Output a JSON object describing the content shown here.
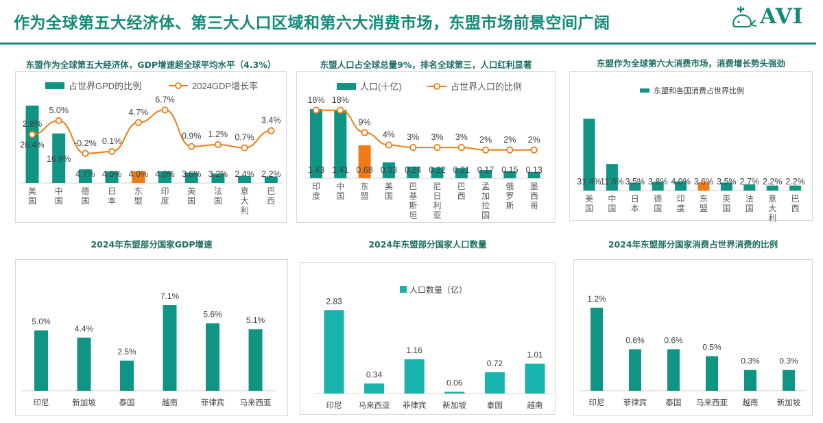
{
  "header": {
    "title": "作为全球第五大经济体、第三大人口区域和第六大消费市场，东盟市场前景空间广阔",
    "logo_text": "AVI"
  },
  "colors": {
    "teal": "#109585",
    "orange": "#f07b14",
    "cyan": "#17b3ad",
    "title": "#158a78"
  },
  "chart_data": [
    {
      "type": "bar",
      "title": "东盟作为全球第五大经济体，GDP增速超全球平均水平（4.3%）",
      "categories": [
        "美国",
        "中国",
        "德国",
        "日本",
        "东盟",
        "印度",
        "英国",
        "法国",
        "意大利",
        "巴西"
      ],
      "highlight_category": "东盟",
      "series": [
        {
          "name": "占世界GPD的比例",
          "kind": "bar",
          "values": [
            26.4,
            16.9,
            4.7,
            4.0,
            4.0,
            4.0,
            3.6,
            3.2,
            2.4,
            2.2
          ],
          "decimals": 1,
          "suffix": "%"
        },
        {
          "name": "2024GDP增长率",
          "kind": "line",
          "values": [
            2.8,
            5.0,
            -0.2,
            0.1,
            4.7,
            6.7,
            0.9,
            1.2,
            0.7,
            3.4
          ],
          "decimals": 1,
          "suffix": "%"
        }
      ],
      "legend": "top"
    },
    {
      "type": "bar",
      "title": "东盟人口占全球总量9%，排名全球第三，人口红利显著",
      "categories": [
        "印度",
        "中国",
        "东盟",
        "美国",
        "巴基斯坦",
        "尼日利亚",
        "巴西",
        "孟加拉国",
        "俄罗斯",
        "墨西哥"
      ],
      "highlight_category": "东盟",
      "series": [
        {
          "name": "人口(十亿)",
          "kind": "bar",
          "values": [
            1.43,
            1.41,
            0.68,
            0.33,
            0.24,
            0.22,
            0.21,
            0.17,
            0.15,
            0.13
          ],
          "decimals": 2,
          "suffix": ""
        },
        {
          "name": "占世界人口的比例",
          "kind": "line",
          "values": [
            18,
            18,
            9,
            4,
            3,
            3,
            3,
            2,
            2,
            2
          ],
          "decimals": 0,
          "suffix": "%"
        }
      ],
      "legend": "top"
    },
    {
      "type": "bar",
      "title": "东盟作为全球第六大消费市场，消费增长势头强劲",
      "categories": [
        "美国",
        "中国",
        "日本",
        "德国",
        "印度",
        "东盟",
        "英国",
        "法国",
        "意大利",
        "巴西"
      ],
      "highlight_category": "东盟",
      "series": [
        {
          "name": "东盟和各国消费占世界比例",
          "kind": "bar",
          "values": [
            31.4,
            11.6,
            3.5,
            3.8,
            4.0,
            3.6,
            3.5,
            2.7,
            2.2,
            2.2
          ],
          "decimals": 1,
          "suffix": "%"
        }
      ],
      "legend": "top"
    },
    {
      "type": "bar",
      "title": "2024年东盟部分国家GDP增速",
      "categories": [
        "印尼",
        "新加坡",
        "泰国",
        "越南",
        "菲律宾",
        "马来西亚"
      ],
      "series": [
        {
          "name": "GDP增速",
          "kind": "bar",
          "values": [
            5.0,
            4.4,
            2.5,
            7.1,
            5.6,
            5.1
          ],
          "decimals": 1,
          "suffix": "%"
        }
      ],
      "legend": "none"
    },
    {
      "type": "bar",
      "title": "2024年东盟部分国家人口数量",
      "categories": [
        "印尼",
        "马来西亚",
        "菲律宾",
        "新加坡",
        "泰国",
        "越南"
      ],
      "series": [
        {
          "name": "人口数量（亿）",
          "kind": "bar",
          "values": [
            2.83,
            0.34,
            1.16,
            0.06,
            0.72,
            1.01
          ],
          "decimals": 2,
          "suffix": ""
        }
      ],
      "legend": "top"
    },
    {
      "type": "bar",
      "title": "2024年东盟部分国家消费占世界消费的比例",
      "categories": [
        "印尼",
        "菲律宾",
        "泰国",
        "马来西亚",
        "越南",
        "新加坡"
      ],
      "series": [
        {
          "name": "消费占世界消费的比例",
          "kind": "bar",
          "values": [
            1.2,
            0.6,
            0.6,
            0.5,
            0.3,
            0.3
          ],
          "decimals": 1,
          "suffix": "%"
        }
      ],
      "legend": "none"
    }
  ]
}
